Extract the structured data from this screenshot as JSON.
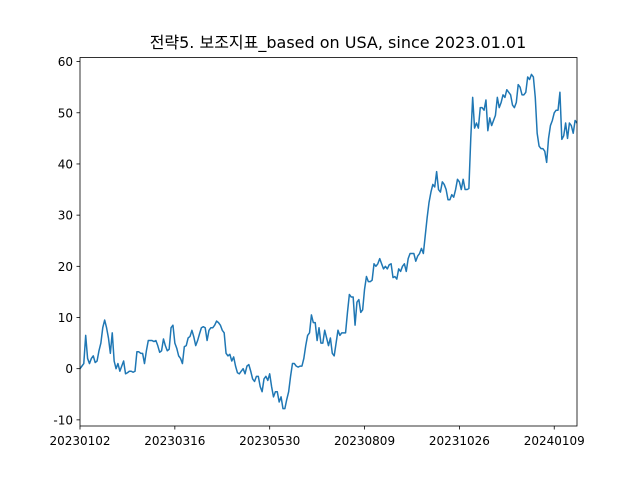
{
  "chart_data": {
    "type": "line",
    "title": "전략5. 보조지표_based on USA, since 2023.01.01",
    "xlabel": "",
    "ylabel": "",
    "x_tick_labels": [
      "20230102",
      "20230316",
      "20230530",
      "20230809",
      "20231026",
      "20240109"
    ],
    "x_tick_index": [
      0,
      50,
      100,
      150,
      200,
      250
    ],
    "y_ticks": [
      -10,
      0,
      10,
      20,
      30,
      40,
      50,
      60
    ],
    "ylim": [
      -11.2,
      60.8
    ],
    "xlim": [
      0,
      262
    ],
    "grid": false,
    "legend": "none",
    "line_color": "#1f77b4",
    "series": [
      {
        "name": "보조지표",
        "values": [
          0.0,
          0.5,
          1.0,
          6.5,
          2.0,
          1.0,
          2.0,
          2.5,
          1.2,
          1.5,
          3.5,
          5.0,
          8.0,
          9.5,
          8.0,
          6.0,
          3.0,
          7.0,
          1.5,
          0.0,
          1.0,
          -0.5,
          0.5,
          1.5,
          -1.0,
          -0.8,
          -0.5,
          -0.5,
          -0.7,
          -0.5,
          3.3,
          3.3,
          3.0,
          3.0,
          1.0,
          3.5,
          5.5,
          5.5,
          5.5,
          5.3,
          5.5,
          4.5,
          3.2,
          3.5,
          5.8,
          4.5,
          3.5,
          3.8,
          8.0,
          8.5,
          5.0,
          4.0,
          2.5,
          2.0,
          1.0,
          4.3,
          4.5,
          6.0,
          6.3,
          7.5,
          6.2,
          4.5,
          5.5,
          6.8,
          8.0,
          8.2,
          8.0,
          5.5,
          7.5,
          8.0,
          8.0,
          8.5,
          9.3,
          9.0,
          8.5,
          7.5,
          7.0,
          3.0,
          2.5,
          2.8,
          1.5,
          2.3,
          0.5,
          -0.8,
          -1.0,
          -0.5,
          0.0,
          -1.0,
          0.5,
          0.8,
          -0.5,
          -2.0,
          -2.5,
          -1.5,
          -1.5,
          -3.5,
          -4.5,
          -2.0,
          -1.5,
          -2.3,
          -1.0,
          -3.5,
          -5.5,
          -4.5,
          -4.5,
          -6.5,
          -5.5,
          -7.8,
          -7.8,
          -6.0,
          -4.5,
          -1.5,
          1.0,
          1.0,
          0.5,
          0.3,
          0.5,
          0.5,
          2.0,
          4.5,
          6.5,
          7.0,
          10.5,
          9.0,
          9.0,
          5.5,
          8.0,
          5.0,
          5.0,
          7.5,
          6.0,
          4.5,
          6.0,
          3.0,
          2.5,
          5.0,
          7.5,
          6.5,
          7.0,
          7.0,
          7.0,
          11.0,
          14.5,
          14.0,
          14.0,
          8.5,
          13.0,
          13.5,
          11.0,
          11.5,
          15.5,
          18.0,
          17.0,
          17.0,
          17.3,
          20.5,
          20.0,
          20.5,
          21.5,
          20.5,
          19.5,
          20.0,
          19.5,
          20.3,
          20.5,
          17.8,
          18.0,
          17.5,
          19.5,
          19.0,
          20.0,
          20.5,
          19.0,
          21.5,
          22.5,
          22.5,
          22.5,
          21.0,
          22.0,
          22.5,
          23.5,
          22.5,
          26.0,
          29.5,
          32.5,
          34.5,
          36.0,
          35.5,
          38.5,
          35.0,
          34.5,
          36.5,
          36.0,
          35.0,
          33.0,
          33.0,
          34.0,
          33.5,
          35.0,
          37.0,
          36.5,
          35.0,
          37.0,
          35.0,
          35.0,
          35.2,
          45.0,
          53.0,
          47.0,
          48.0,
          47.0,
          51.0,
          51.0,
          50.5,
          52.5,
          46.5,
          49.0,
          47.5,
          48.5,
          49.5,
          53.0,
          51.0,
          52.0,
          53.5,
          53.0,
          54.5,
          54.0,
          53.5,
          51.5,
          51.0,
          52.0,
          55.5,
          55.0,
          53.5,
          53.5,
          54.0,
          57.0,
          56.5,
          57.5,
          57.0,
          53.0,
          46.0,
          43.5,
          43.0,
          43.0,
          42.5,
          40.3,
          45.0,
          47.5,
          48.5,
          50.0,
          50.5,
          50.5,
          54.0,
          44.8,
          45.5,
          48.0,
          45.0,
          48.0,
          47.5,
          46.0,
          48.5,
          48.0
        ]
      }
    ]
  }
}
